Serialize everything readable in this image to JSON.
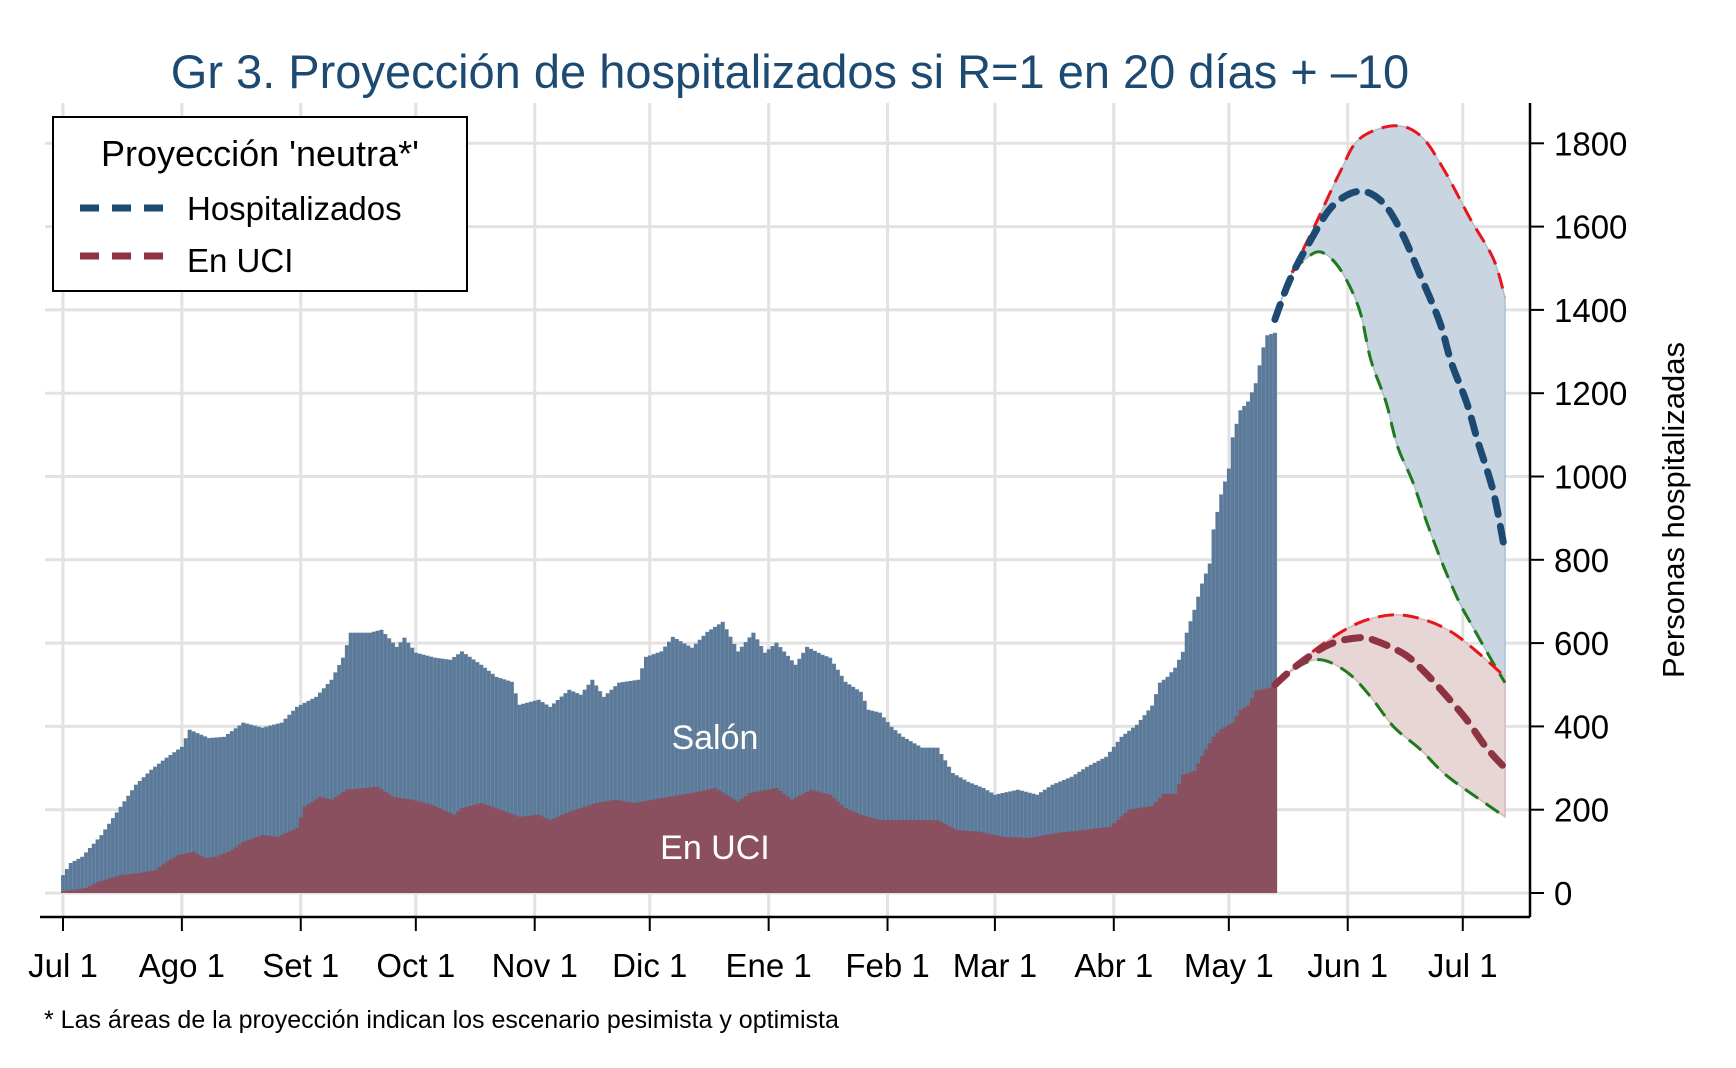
{
  "chart_data": {
    "type": "bar",
    "title": "Gr 3. Proyección de hospitalizados si R=1 en 20 días + –10",
    "xlabel": "",
    "ylabel": "Personas hospitalizadas",
    "x_unit": "days since Jul 1",
    "xlim": [
      -5,
      392
    ],
    "ylim": [
      -50,
      1880
    ],
    "y_ticks": [
      0,
      200,
      400,
      600,
      800,
      1000,
      1200,
      1400,
      1600,
      1800
    ],
    "x_ticks": [
      {
        "day": 0,
        "label": "Jul 1"
      },
      {
        "day": 31,
        "label": "Ago 1"
      },
      {
        "day": 62,
        "label": "Set 1"
      },
      {
        "day": 92,
        "label": "Oct 1"
      },
      {
        "day": 123,
        "label": "Nov 1"
      },
      {
        "day": 153,
        "label": "Dic 1"
      },
      {
        "day": 184,
        "label": "Ene 1"
      },
      {
        "day": 215,
        "label": "Feb 1"
      },
      {
        "day": 243,
        "label": "Mar 1"
      },
      {
        "day": 274,
        "label": "Abr 1"
      },
      {
        "day": 304,
        "label": "May 1"
      },
      {
        "day": 335,
        "label": "Jun 1"
      },
      {
        "day": 365,
        "label": "Jul 1"
      }
    ],
    "grid": true,
    "legend": {
      "title": "Proyección 'neutra*'",
      "position": "top-left",
      "entries": [
        {
          "label": "Hospitalizados",
          "color": "#1d4a72"
        },
        {
          "label": "En UCI",
          "color": "#8e3342"
        }
      ]
    },
    "area_labels": [
      {
        "text": "Salón",
        "day": 170,
        "value": 375
      },
      {
        "text": "En UCI",
        "day": 170,
        "value": 110
      }
    ],
    "footnote": "* Las áreas de la proyección indican los escenario pesimista y optimista",
    "colors": {
      "salon": "#5b7a99",
      "uci": "#8a5060",
      "hosp_band": "#c9d6e1",
      "uci_band": "#e8d5d6",
      "hosp_line": "#1d4a72",
      "uci_line": "#8e3342",
      "pessimistic": "#e8161b",
      "optimistic": "#1d7a1d",
      "title": "#1d4a72"
    },
    "series": [
      {
        "name": "Hospitalizados (total, Salón + UCI)",
        "kind": "bars",
        "last_day": 316,
        "points": [
          [
            0,
            43
          ],
          [
            2,
            72
          ],
          [
            5,
            87
          ],
          [
            7,
            108
          ],
          [
            10,
            139
          ],
          [
            15,
            207
          ],
          [
            19,
            260
          ],
          [
            23,
            296
          ],
          [
            27,
            325
          ],
          [
            31,
            351
          ],
          [
            33,
            392
          ],
          [
            38,
            372
          ],
          [
            42,
            375
          ],
          [
            47,
            409
          ],
          [
            52,
            397
          ],
          [
            57,
            409
          ],
          [
            61,
            447
          ],
          [
            66,
            471
          ],
          [
            70,
            512
          ],
          [
            73,
            565
          ],
          [
            75,
            625
          ],
          [
            80,
            625
          ],
          [
            83,
            632
          ],
          [
            87,
            591
          ],
          [
            89,
            613
          ],
          [
            92,
            577
          ],
          [
            97,
            565
          ],
          [
            101,
            560
          ],
          [
            104,
            580
          ],
          [
            109,
            548
          ],
          [
            113,
            519
          ],
          [
            117,
            507
          ],
          [
            119,
            452
          ],
          [
            124,
            464
          ],
          [
            127,
            447
          ],
          [
            132,
            488
          ],
          [
            135,
            476
          ],
          [
            138,
            512
          ],
          [
            141,
            471
          ],
          [
            145,
            505
          ],
          [
            150,
            512
          ],
          [
            152,
            567
          ],
          [
            156,
            580
          ],
          [
            159,
            615
          ],
          [
            164,
            589
          ],
          [
            168,
            627
          ],
          [
            172,
            651
          ],
          [
            176,
            580
          ],
          [
            180,
            625
          ],
          [
            183,
            577
          ],
          [
            186,
            601
          ],
          [
            191,
            548
          ],
          [
            194,
            591
          ],
          [
            198,
            572
          ],
          [
            200,
            565
          ],
          [
            204,
            507
          ],
          [
            208,
            483
          ],
          [
            210,
            440
          ],
          [
            213,
            433
          ],
          [
            216,
            399
          ],
          [
            219,
            375
          ],
          [
            224,
            349
          ],
          [
            228,
            349
          ],
          [
            232,
            288
          ],
          [
            236,
            267
          ],
          [
            240,
            252
          ],
          [
            243,
            236
          ],
          [
            249,
            248
          ],
          [
            254,
            236
          ],
          [
            258,
            260
          ],
          [
            263,
            279
          ],
          [
            267,
            303
          ],
          [
            272,
            327
          ],
          [
            276,
            375
          ],
          [
            280,
            404
          ],
          [
            284,
            450
          ],
          [
            286,
            505
          ],
          [
            288,
            519
          ],
          [
            290,
            541
          ],
          [
            292,
            579
          ],
          [
            293,
            625
          ],
          [
            295,
            680
          ],
          [
            297,
            743
          ],
          [
            299,
            791
          ],
          [
            300,
            873
          ],
          [
            302,
            957
          ],
          [
            304,
            1019
          ],
          [
            305,
            1094
          ],
          [
            307,
            1159
          ],
          [
            309,
            1180
          ],
          [
            311,
            1224
          ],
          [
            313,
            1310
          ],
          [
            314,
            1339
          ],
          [
            316,
            1345
          ]
        ]
      },
      {
        "name": "En UCI",
        "kind": "bars",
        "last_day": 316,
        "points": [
          [
            0,
            4
          ],
          [
            6,
            12
          ],
          [
            9,
            26
          ],
          [
            15,
            43
          ],
          [
            20,
            48
          ],
          [
            24,
            55
          ],
          [
            27,
            75
          ],
          [
            30,
            91
          ],
          [
            34,
            99
          ],
          [
            37,
            84
          ],
          [
            40,
            87
          ],
          [
            44,
            103
          ],
          [
            47,
            123
          ],
          [
            52,
            139
          ],
          [
            56,
            135
          ],
          [
            61,
            156
          ],
          [
            63,
            207
          ],
          [
            67,
            231
          ],
          [
            70,
            224
          ],
          [
            74,
            248
          ],
          [
            82,
            255
          ],
          [
            86,
            231
          ],
          [
            91,
            224
          ],
          [
            96,
            212
          ],
          [
            102,
            188
          ],
          [
            104,
            204
          ],
          [
            109,
            216
          ],
          [
            114,
            200
          ],
          [
            119,
            183
          ],
          [
            124,
            188
          ],
          [
            127,
            175
          ],
          [
            132,
            195
          ],
          [
            139,
            216
          ],
          [
            144,
            224
          ],
          [
            149,
            216
          ],
          [
            156,
            228
          ],
          [
            164,
            240
          ],
          [
            170,
            252
          ],
          [
            176,
            219
          ],
          [
            179,
            240
          ],
          [
            186,
            252
          ],
          [
            190,
            224
          ],
          [
            195,
            248
          ],
          [
            200,
            236
          ],
          [
            204,
            204
          ],
          [
            208,
            188
          ],
          [
            213,
            175
          ],
          [
            219,
            175
          ],
          [
            228,
            175
          ],
          [
            233,
            151
          ],
          [
            239,
            147
          ],
          [
            245,
            135
          ],
          [
            252,
            132
          ],
          [
            259,
            144
          ],
          [
            266,
            151
          ],
          [
            273,
            159
          ],
          [
            278,
            200
          ],
          [
            284,
            209
          ],
          [
            287,
            238
          ],
          [
            290,
            238
          ],
          [
            292,
            284
          ],
          [
            295,
            293
          ],
          [
            297,
            329
          ],
          [
            300,
            375
          ],
          [
            302,
            394
          ],
          [
            305,
            409
          ],
          [
            307,
            440
          ],
          [
            309,
            450
          ],
          [
            311,
            486
          ],
          [
            316,
            495
          ]
        ]
      },
      {
        "name": "Hospitalizados proyección neutra",
        "kind": "line",
        "points": [
          [
            316,
            1377
          ],
          [
            320,
            1474
          ],
          [
            325,
            1562
          ],
          [
            331,
            1649
          ],
          [
            338,
            1685
          ],
          [
            344,
            1659
          ],
          [
            349,
            1587
          ],
          [
            354,
            1481
          ],
          [
            359,
            1370
          ],
          [
            362,
            1274
          ],
          [
            366,
            1178
          ],
          [
            369,
            1082
          ],
          [
            373,
            962
          ],
          [
            376,
            820
          ]
        ]
      },
      {
        "name": "Hospitalizados escenario pesimista",
        "kind": "line",
        "points": [
          [
            316,
            1377
          ],
          [
            320,
            1480
          ],
          [
            326,
            1594
          ],
          [
            333,
            1731
          ],
          [
            338,
            1810
          ],
          [
            347,
            1842
          ],
          [
            354,
            1818
          ],
          [
            360,
            1738
          ],
          [
            367,
            1618
          ],
          [
            373,
            1522
          ],
          [
            376,
            1430
          ]
        ]
      },
      {
        "name": "Hospitalizados escenario optimista",
        "kind": "line",
        "points": [
          [
            316,
            1377
          ],
          [
            320,
            1481
          ],
          [
            324,
            1522
          ],
          [
            328,
            1539
          ],
          [
            333,
            1498
          ],
          [
            338,
            1402
          ],
          [
            341,
            1281
          ],
          [
            345,
            1178
          ],
          [
            348,
            1072
          ],
          [
            352,
            986
          ],
          [
            356,
            880
          ],
          [
            360,
            784
          ],
          [
            364,
            700
          ],
          [
            367,
            649
          ],
          [
            372,
            567
          ],
          [
            376,
            505
          ]
        ]
      },
      {
        "name": "En UCI proyección neutra",
        "kind": "line",
        "points": [
          [
            316,
            500
          ],
          [
            322,
            548
          ],
          [
            330,
            596
          ],
          [
            338,
            613
          ],
          [
            343,
            603
          ],
          [
            350,
            572
          ],
          [
            355,
            531
          ],
          [
            360,
            481
          ],
          [
            366,
            416
          ],
          [
            371,
            351
          ],
          [
            376,
            300
          ]
        ]
      },
      {
        "name": "En UCI escenario pesimista",
        "kind": "line",
        "points": [
          [
            316,
            500
          ],
          [
            322,
            550
          ],
          [
            329,
            601
          ],
          [
            338,
            649
          ],
          [
            347,
            668
          ],
          [
            355,
            656
          ],
          [
            362,
            627
          ],
          [
            369,
            577
          ],
          [
            376,
            519
          ]
        ]
      },
      {
        "name": "En UCI escenario optimista",
        "kind": "line",
        "points": [
          [
            316,
            500
          ],
          [
            322,
            543
          ],
          [
            328,
            560
          ],
          [
            335,
            529
          ],
          [
            341,
            471
          ],
          [
            347,
            399
          ],
          [
            354,
            344
          ],
          [
            360,
            288
          ],
          [
            367,
            240
          ],
          [
            376,
            183
          ]
        ]
      }
    ]
  }
}
